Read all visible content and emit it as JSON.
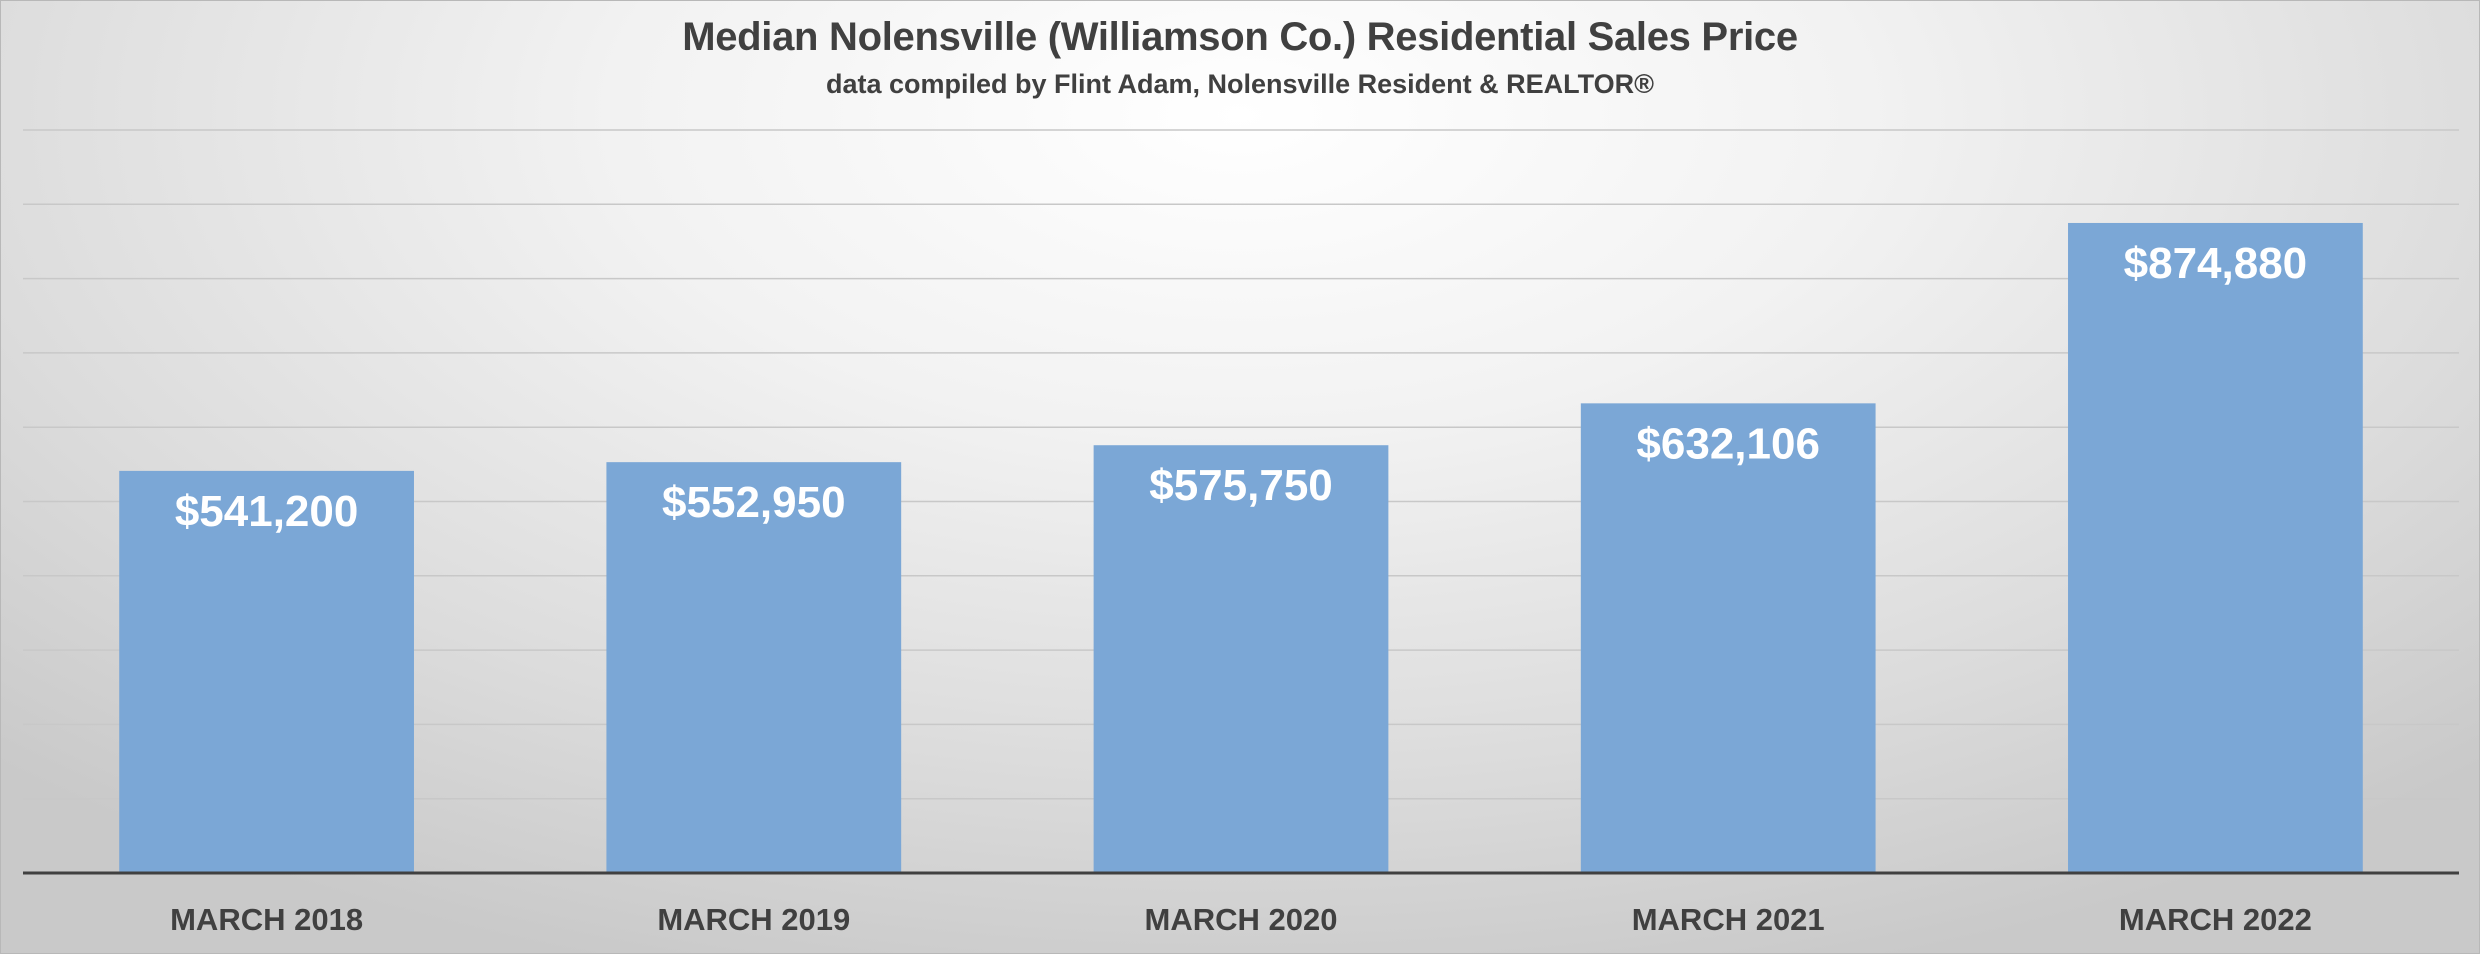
{
  "chart_data": {
    "type": "bar",
    "title": "Median Nolensville (Williamson Co.) Residential Sales Price",
    "subtitle": "data compiled by Flint Adam, Nolensville Resident & REALTOR®",
    "categories": [
      "MARCH 2018",
      "MARCH 2019",
      "MARCH 2020",
      "MARCH 2021",
      "MARCH 2022"
    ],
    "values": [
      541200,
      552950,
      575750,
      632106,
      874880
    ],
    "data_labels": [
      "$541,200",
      "$552,950",
      "$575,750",
      "$632,106",
      "$874,880"
    ],
    "xlabel": "",
    "ylabel": "",
    "ylim": [
      0,
      1000000
    ],
    "grid": true,
    "legend": "none",
    "colors": {
      "bar": "#7ba7d6",
      "bar_label": "#ffffff",
      "gridline": "#c8c8c8",
      "axis": "#404040",
      "tick_label": "#404040",
      "title": "#404040"
    }
  }
}
